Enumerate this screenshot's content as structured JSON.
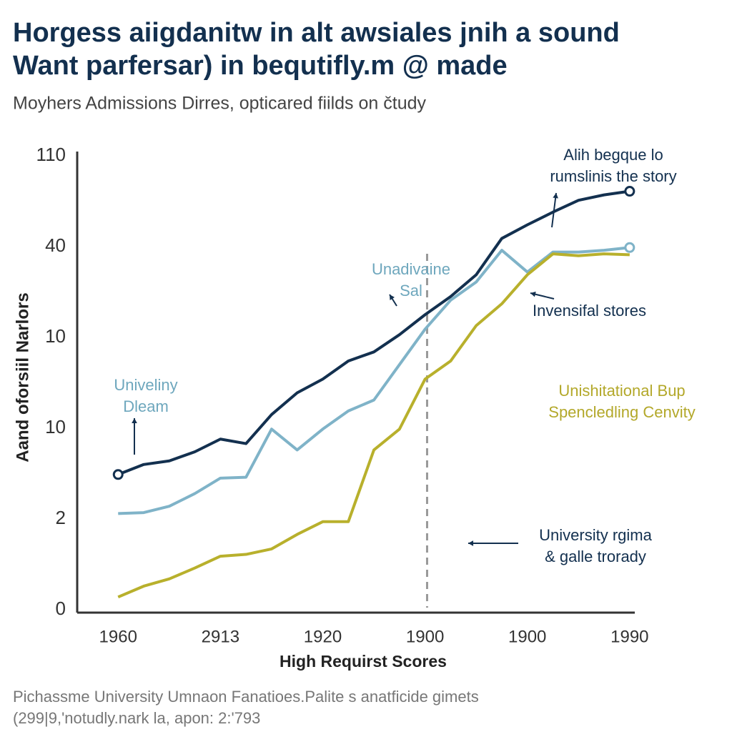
{
  "chart_data": {
    "type": "line",
    "title": [
      "Horgess aiigdanitw in alt awsiales jnih a sound",
      "Want parfersar) in bequtifly.m @ made"
    ],
    "subtitle": "Moyhers Admissions Dirres, opticared fiilds on čtudy",
    "y_label": "Aand oforsiil Narlors",
    "x_label": "High Requirst Scores",
    "footnote": [
      "Pichassme University Umnaon Fanatioes.Palite s anatficide gimets",
      "(299|9,'notudly.nark la, apon: 2:'793"
    ],
    "x": [
      0,
      0.25,
      0.5,
      0.75,
      1,
      1.25,
      1.5,
      1.75,
      2,
      2.25,
      2.5,
      2.75,
      3,
      3.25,
      3.5,
      3.75,
      4,
      4.25,
      4.5,
      4.75,
      5
    ],
    "xlim": [
      -0.4,
      5.05
    ],
    "xticks": [
      {
        "value": 0,
        "label": "1960"
      },
      {
        "value": 1,
        "label": "2913"
      },
      {
        "value": 2,
        "label": "1920"
      },
      {
        "value": 3,
        "label": "1900"
      },
      {
        "value": 4,
        "label": "1900"
      },
      {
        "value": 5,
        "label": "1990"
      }
    ],
    "ylim": [
      0,
      5
    ],
    "yticks": [
      {
        "value": 0,
        "label": "0"
      },
      {
        "value": 1,
        "label": "2"
      },
      {
        "value": 2,
        "label": "10"
      },
      {
        "value": 3,
        "label": "10"
      },
      {
        "value": 4,
        "label": "40"
      },
      {
        "value": 5,
        "label": "110"
      }
    ],
    "grid": false,
    "reference_x": 3.02,
    "series": [
      {
        "color": "#13304f",
        "values": [
          1.49,
          1.6,
          1.64,
          1.74,
          1.88,
          1.83,
          2.15,
          2.39,
          2.54,
          2.74,
          2.84,
          3.03,
          3.25,
          3.45,
          3.69,
          4.09,
          4.24,
          4.38,
          4.51,
          4.57,
          4.61
        ]
      },
      {
        "color": "#7fb3c8",
        "values": [
          1.06,
          1.07,
          1.14,
          1.28,
          1.45,
          1.46,
          1.99,
          1.76,
          1.99,
          2.19,
          2.31,
          2.7,
          3.09,
          3.41,
          3.61,
          3.96,
          3.72,
          3.94,
          3.94,
          3.96,
          3.99
        ]
      },
      {
        "color": "#b8b02c",
        "values": [
          0.14,
          0.26,
          0.34,
          0.46,
          0.59,
          0.61,
          0.67,
          0.83,
          0.97,
          0.97,
          1.76,
          1.99,
          2.54,
          2.74,
          3.13,
          3.37,
          3.69,
          3.92,
          3.9,
          3.92,
          3.91
        ]
      }
    ],
    "annotations": [
      {
        "lines": [
          "Alih begque lo",
          "rumslinis the story"
        ],
        "color": "#13304f"
      },
      {
        "lines": [
          "Unadivaine",
          "Sal"
        ],
        "color": "#6ea7bd"
      },
      {
        "lines": [
          "Invensifal stores"
        ],
        "color": "#13304f"
      },
      {
        "lines": [
          "Univeliny",
          "Dleam"
        ],
        "color": "#6ea7bd"
      },
      {
        "lines": [
          "Unishitational Bup",
          "Spencledling Cenvity"
        ],
        "color": "#b3a82a"
      },
      {
        "lines": [
          "University rgima",
          "& galle trorady"
        ],
        "color": "#13304f"
      }
    ]
  }
}
